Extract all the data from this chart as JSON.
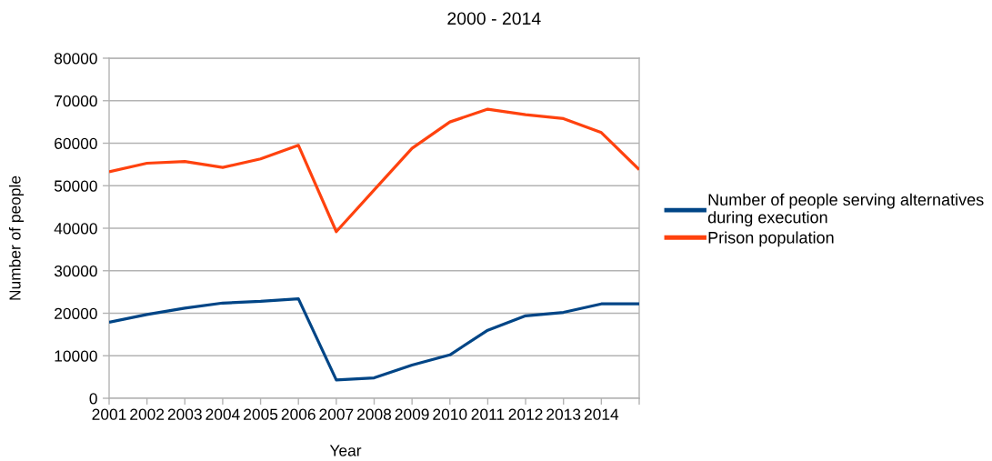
{
  "chart_data": {
    "type": "line",
    "title": "2000 - 2014",
    "xlabel": "Year",
    "ylabel": "Number of people",
    "categories": [
      "2001",
      "2002",
      "2003",
      "2004",
      "2005",
      "2006",
      "2007",
      "2008",
      "2009",
      "2010",
      "2011",
      "2012",
      "2013",
      "2014",
      null
    ],
    "series": [
      {
        "name": "Number of people serving alternatives during execution",
        "color": "#004586",
        "values": [
          17900,
          19700,
          21200,
          22400,
          22800,
          23400,
          4300,
          4800,
          7800,
          10200,
          16000,
          19400,
          20200,
          22200,
          22200
        ]
      },
      {
        "name": "Prison population",
        "color": "#ff420e",
        "values": [
          53300,
          55300,
          55700,
          54300,
          56300,
          59500,
          39200,
          49000,
          58800,
          65000,
          68000,
          66700,
          65800,
          62500,
          53800
        ]
      }
    ],
    "ylim": [
      0,
      80000
    ],
    "yticks": [
      0,
      10000,
      20000,
      30000,
      40000,
      50000,
      60000,
      70000,
      80000
    ],
    "grid": "y",
    "legend": "right",
    "line_style": "solid"
  }
}
